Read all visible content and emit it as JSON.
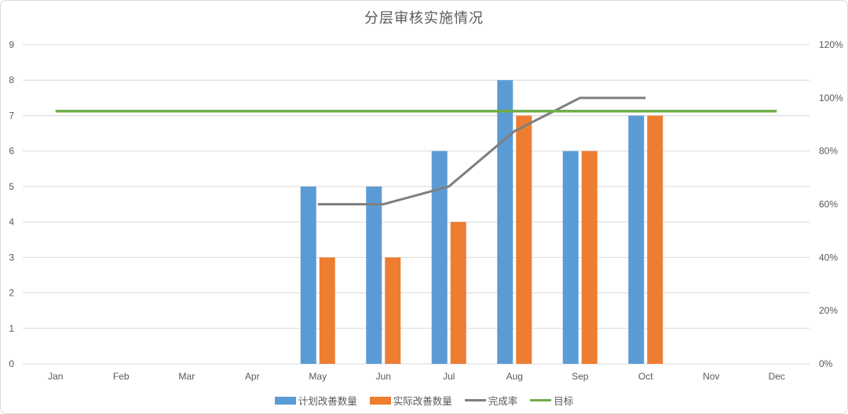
{
  "chart_data": {
    "type": "combo-bar-line",
    "title": "分层审核实施情况",
    "categories": [
      "Jan",
      "Feb",
      "Mar",
      "Apr",
      "May",
      "Jun",
      "Jul",
      "Aug",
      "Sep",
      "Oct",
      "Nov",
      "Dec"
    ],
    "series": [
      {
        "name": "计划改善数量",
        "type": "bar",
        "axis": "left",
        "color": "#5B9BD5",
        "values": [
          null,
          null,
          null,
          null,
          5,
          5,
          6,
          8,
          6,
          7,
          null,
          null
        ]
      },
      {
        "name": "实际改善数量",
        "type": "bar",
        "axis": "left",
        "color": "#ED7D31",
        "values": [
          null,
          null,
          null,
          null,
          3,
          3,
          4,
          7,
          6,
          7,
          null,
          null
        ]
      },
      {
        "name": "完成率",
        "type": "line",
        "axis": "right",
        "color": "#7F7F7F",
        "values": [
          null,
          null,
          null,
          null,
          60,
          60,
          66.7,
          87.5,
          100,
          100,
          null,
          null
        ]
      },
      {
        "name": "目标",
        "type": "line",
        "axis": "right",
        "color": "#70AD47",
        "values": [
          95,
          95,
          95,
          95,
          95,
          95,
          95,
          95,
          95,
          95,
          95,
          95
        ]
      }
    ],
    "left_axis": {
      "min": 0,
      "max": 9,
      "tick_step": 1,
      "ticks": [
        "0",
        "1",
        "2",
        "3",
        "4",
        "5",
        "6",
        "7",
        "8",
        "9"
      ]
    },
    "right_axis": {
      "min": 0,
      "max": 120,
      "tick_step": 20,
      "ticks": [
        "0%",
        "20%",
        "40%",
        "60%",
        "80%",
        "100%",
        "120%"
      ]
    },
    "legend_position": "bottom",
    "grid": true
  },
  "colors": {
    "grid": "#D9D9D9",
    "axis_text": "#595959",
    "background": "#FFFFFF",
    "panel_border": "#D9D9D9"
  }
}
